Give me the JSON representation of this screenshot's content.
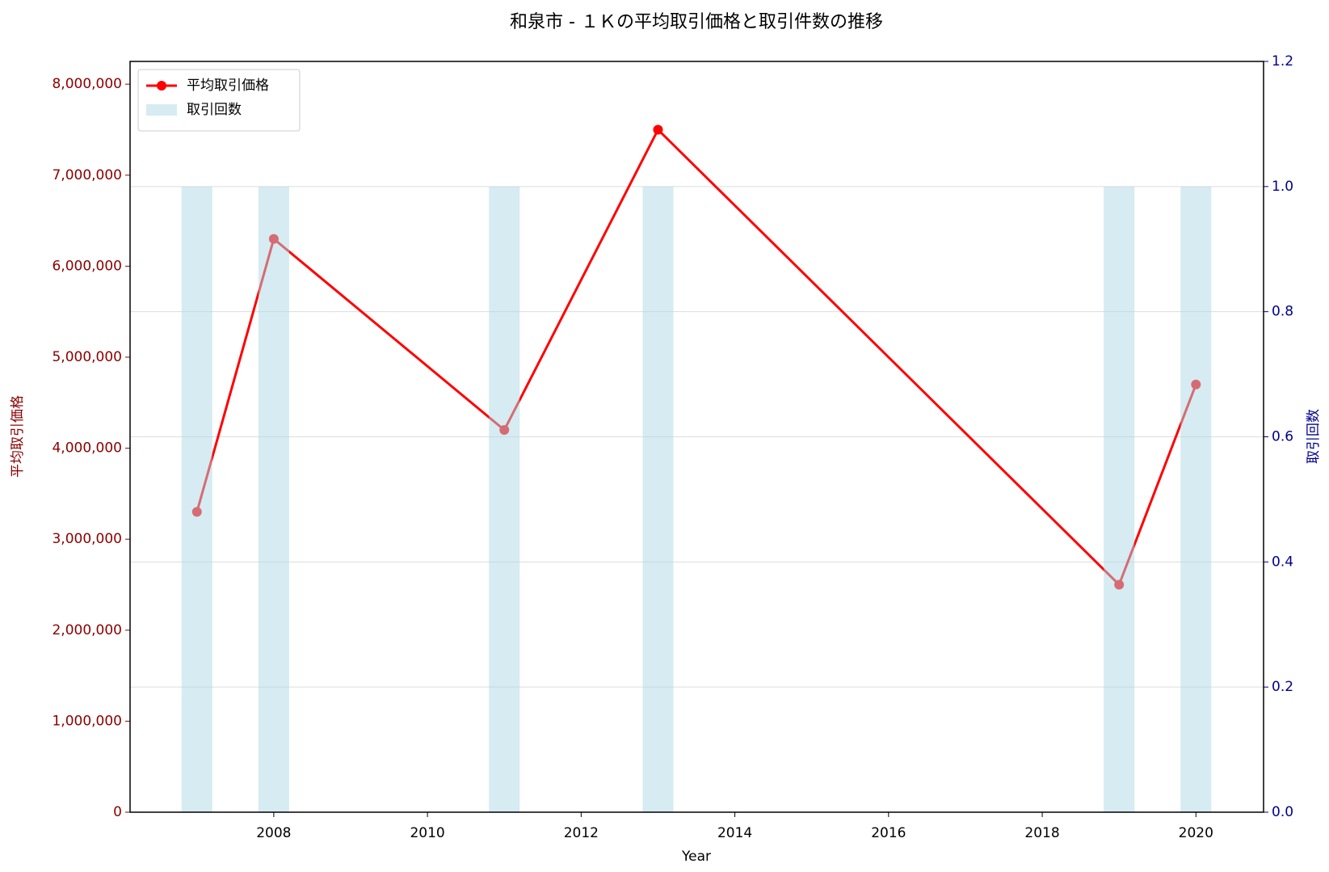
{
  "chart_data": {
    "type": "line",
    "title": "和泉市 - １Ｋの平均取引価格と取引件数の推移",
    "xlabel": "Year",
    "ylabel": "平均取引価格",
    "y2label": "取引回数",
    "x": [
      2007,
      2008,
      2011,
      2013,
      2019,
      2020
    ],
    "series": [
      {
        "name": "平均取引価格",
        "type": "line",
        "color": "#ff0000",
        "values": [
          3300000,
          6300000,
          4200000,
          7500000,
          2500000,
          4700000
        ]
      },
      {
        "name": "取引回数",
        "type": "bar",
        "color": "#add8e6",
        "axis": "y2",
        "values": [
          1,
          1,
          1,
          1,
          1,
          1
        ]
      }
    ],
    "xlim": [
      2006.13,
      2020.88
    ],
    "xticks": [
      2008,
      2010,
      2012,
      2014,
      2016,
      2018,
      2020
    ],
    "ylim": [
      0,
      8250000
    ],
    "yticks": [
      0,
      {
        "value": 1000000,
        "label": "1,000,000"
      },
      {
        "value": 2000000,
        "label": "2,000,000"
      },
      {
        "value": 3000000,
        "label": "3,000,000"
      },
      {
        "value": 4000000,
        "label": "4,000,000"
      },
      {
        "value": 5000000,
        "label": "5,000,000"
      },
      {
        "value": 6000000,
        "label": "6,000,000"
      },
      {
        "value": 7000000,
        "label": "7,000,000"
      },
      {
        "value": 8000000,
        "label": "8,000,000"
      }
    ],
    "y2lim": [
      0,
      1.2
    ],
    "y2ticks": [
      {
        "value": 0,
        "label": "0.0"
      },
      {
        "value": 0.2,
        "label": "0.2"
      },
      {
        "value": 0.4,
        "label": "0.4"
      },
      {
        "value": 0.6,
        "label": "0.6"
      },
      {
        "value": 0.8,
        "label": "0.8"
      },
      {
        "value": 1.0,
        "label": "1.0"
      },
      {
        "value": 1.2,
        "label": "1.2"
      }
    ],
    "grid": true,
    "legend": "upper left"
  }
}
